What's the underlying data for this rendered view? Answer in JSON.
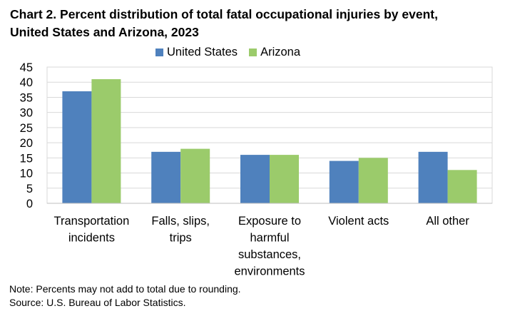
{
  "chart_data": {
    "type": "bar",
    "title_line1": "Chart 2. Percent distribution of total fatal occupational injuries by event,",
    "title_line2": "United States and Arizona, 2023",
    "categories": [
      [
        "Transportation",
        "incidents"
      ],
      [
        "Falls, slips,",
        "trips"
      ],
      [
        "Exposure to",
        "harmful",
        "substances,",
        "environments"
      ],
      [
        "Violent acts"
      ],
      [
        "All other"
      ]
    ],
    "series": [
      {
        "name": "United States",
        "color": "#4f81bd",
        "values": [
          37,
          17,
          16,
          14,
          17
        ]
      },
      {
        "name": "Arizona",
        "color": "#9bcb6b",
        "values": [
          41,
          18,
          16,
          15,
          11
        ]
      }
    ],
    "ylim": [
      0,
      45
    ],
    "yticks": [
      0,
      5,
      10,
      15,
      20,
      25,
      30,
      35,
      40,
      45
    ],
    "grid": true,
    "legend_position": "top-center"
  },
  "notes": {
    "note": "Note: Percents may not add to total due to rounding.",
    "source": "Source: U.S. Bureau of Labor Statistics."
  }
}
